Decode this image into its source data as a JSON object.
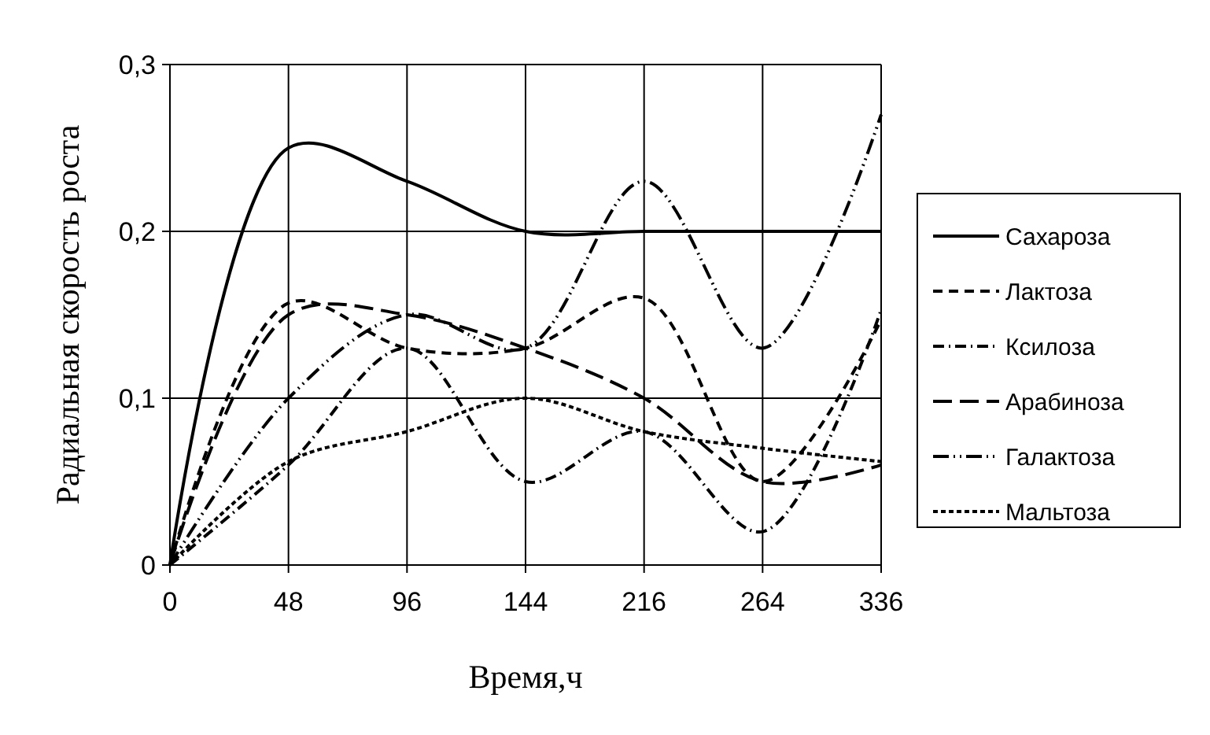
{
  "chart_data": {
    "type": "line",
    "xlabel": "Время,ч",
    "ylabel": "Радиальная скорость роста",
    "categories": [
      "0",
      "48",
      "96",
      "144",
      "216",
      "264",
      "336"
    ],
    "ylim": [
      0,
      0.3
    ],
    "yticks": [
      {
        "value": 0,
        "label": "0"
      },
      {
        "value": 0.1,
        "label": "0,1"
      },
      {
        "value": 0.2,
        "label": "0,2"
      },
      {
        "value": 0.3,
        "label": "0,3"
      }
    ],
    "grid": true,
    "legend": "right",
    "series": [
      {
        "name": "Сахароза",
        "color": "#000000",
        "line_style": "solid",
        "values": [
          0,
          0.25,
          0.23,
          0.2,
          0.2,
          0.2,
          0.2
        ]
      },
      {
        "name": "Лактоза",
        "color": "#000000",
        "line_style": "dashed",
        "values": [
          0,
          0.157,
          0.13,
          0.13,
          0.16,
          0.05,
          0.147
        ]
      },
      {
        "name": "Ксилоза",
        "color": "#000000",
        "line_style": "dashdot",
        "values": [
          0,
          0.06,
          0.13,
          0.05,
          0.08,
          0.02,
          0.153
        ]
      },
      {
        "name": "Арабиноза",
        "color": "#000000",
        "line_style": "longdash",
        "values": [
          0,
          0.15,
          0.15,
          0.13,
          0.1,
          0.05,
          0.06
        ]
      },
      {
        "name": "Галактоза",
        "color": "#000000",
        "line_style": "dashdotdot",
        "values": [
          0,
          0.1,
          0.15,
          0.13,
          0.23,
          0.13,
          0.27
        ]
      },
      {
        "name": "Мальтоза",
        "color": "#000000",
        "line_style": "dotted",
        "values": [
          0,
          0.062,
          0.08,
          0.1,
          0.08,
          0.07,
          0.062
        ]
      }
    ]
  }
}
